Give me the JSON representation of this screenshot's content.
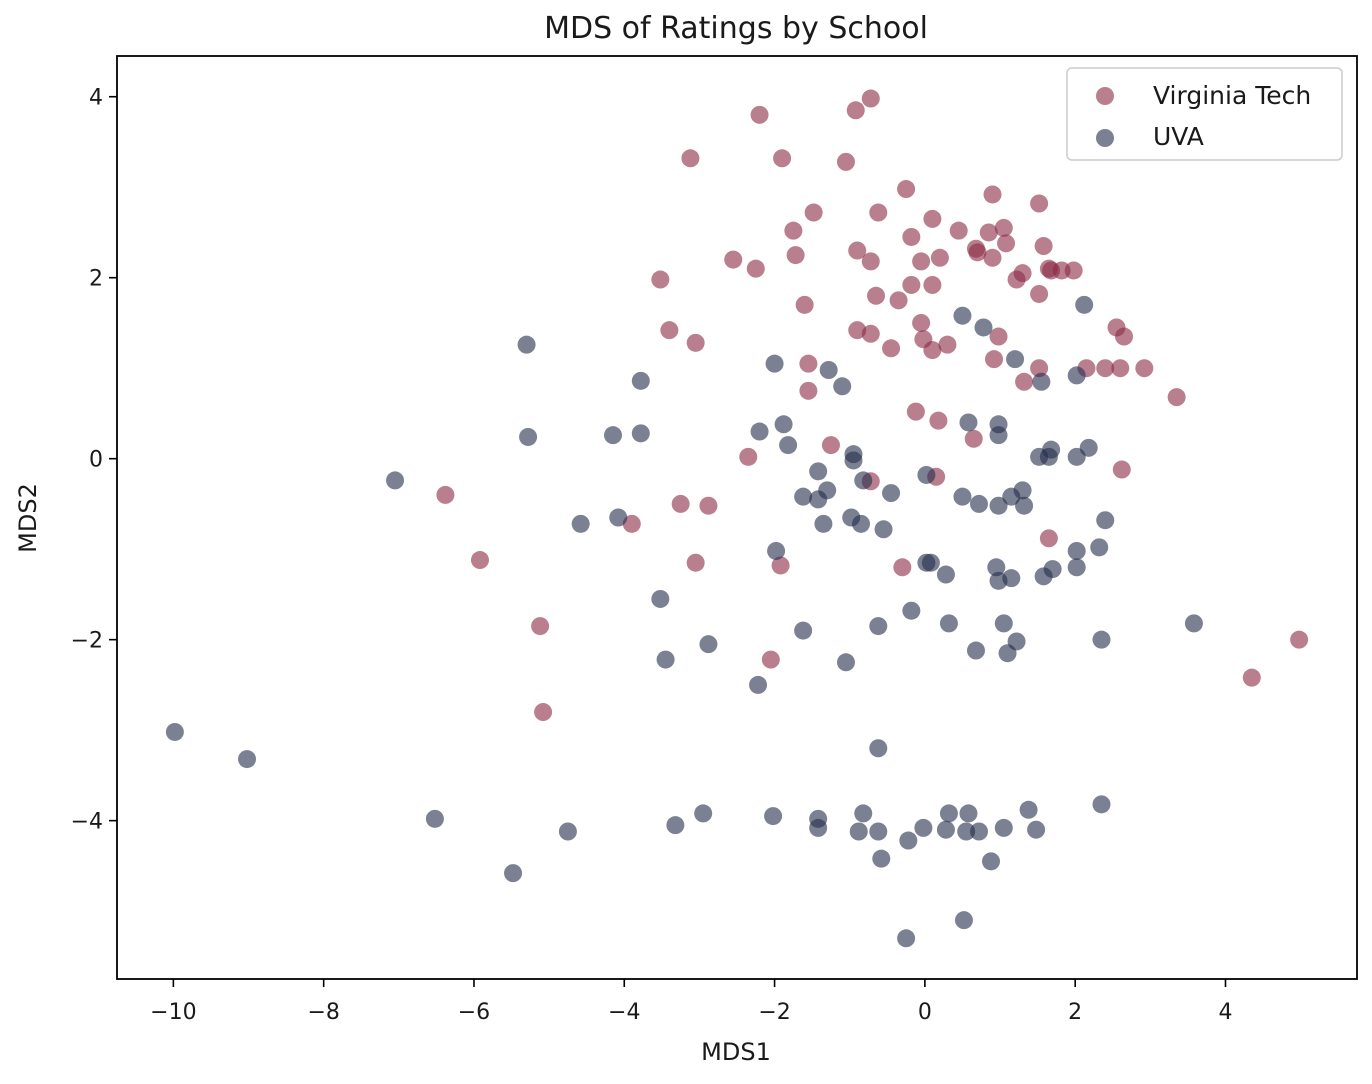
{
  "colors": {
    "virginia_tech": "#8b2942",
    "uva": "#232d4b"
  },
  "chart_data": {
    "type": "scatter",
    "title": "MDS of Ratings by School",
    "xlabel": "MDS1",
    "ylabel": "MDS2",
    "xlim": [
      -10.75,
      5.75
    ],
    "ylim": [
      -5.75,
      4.45
    ],
    "xticks": [
      -10,
      -8,
      -6,
      -4,
      -2,
      0,
      2,
      4
    ],
    "yticks": [
      -4,
      -2,
      0,
      2,
      4
    ],
    "legend_position": "top-right",
    "series": [
      {
        "name": "Virginia Tech",
        "color": "#8b2942",
        "points": [
          [
            -0.72,
            3.98
          ],
          [
            -0.92,
            3.85
          ],
          [
            -2.2,
            3.8
          ],
          [
            -3.12,
            3.32
          ],
          [
            -1.9,
            3.32
          ],
          [
            -1.05,
            3.28
          ],
          [
            -0.25,
            2.98
          ],
          [
            0.9,
            2.92
          ],
          [
            1.52,
            2.82
          ],
          [
            -1.48,
            2.72
          ],
          [
            -0.62,
            2.72
          ],
          [
            0.1,
            2.65
          ],
          [
            -1.75,
            2.52
          ],
          [
            0.45,
            2.52
          ],
          [
            0.85,
            2.5
          ],
          [
            1.05,
            2.55
          ],
          [
            -0.18,
            2.45
          ],
          [
            1.08,
            2.38
          ],
          [
            1.58,
            2.35
          ],
          [
            -0.9,
            2.3
          ],
          [
            0.68,
            2.32
          ],
          [
            0.7,
            2.28
          ],
          [
            -1.72,
            2.25
          ],
          [
            0.9,
            2.22
          ],
          [
            0.2,
            2.22
          ],
          [
            -0.72,
            2.18
          ],
          [
            -0.05,
            2.18
          ],
          [
            -2.55,
            2.2
          ],
          [
            -2.25,
            2.1
          ],
          [
            1.65,
            2.1
          ],
          [
            1.68,
            2.08
          ],
          [
            1.82,
            2.08
          ],
          [
            1.98,
            2.08
          ],
          [
            1.3,
            2.05
          ],
          [
            1.22,
            1.98
          ],
          [
            -3.52,
            1.98
          ],
          [
            -0.18,
            1.92
          ],
          [
            0.1,
            1.92
          ],
          [
            1.52,
            1.82
          ],
          [
            -0.65,
            1.8
          ],
          [
            -0.35,
            1.75
          ],
          [
            -1.6,
            1.7
          ],
          [
            -0.05,
            1.5
          ],
          [
            2.55,
            1.45
          ],
          [
            -3.4,
            1.42
          ],
          [
            -0.9,
            1.42
          ],
          [
            -0.72,
            1.38
          ],
          [
            0.98,
            1.35
          ],
          [
            2.65,
            1.35
          ],
          [
            -0.02,
            1.32
          ],
          [
            -3.05,
            1.28
          ],
          [
            0.3,
            1.26
          ],
          [
            -0.45,
            1.22
          ],
          [
            0.1,
            1.2
          ],
          [
            0.92,
            1.1
          ],
          [
            -1.55,
            1.05
          ],
          [
            1.52,
            1.0
          ],
          [
            2.15,
            1.0
          ],
          [
            2.4,
            1.0
          ],
          [
            2.6,
            1.0
          ],
          [
            2.92,
            1.0
          ],
          [
            1.32,
            0.85
          ],
          [
            -1.55,
            0.75
          ],
          [
            3.35,
            0.68
          ],
          [
            -0.12,
            0.52
          ],
          [
            0.18,
            0.42
          ],
          [
            0.65,
            0.22
          ],
          [
            -1.25,
            0.15
          ],
          [
            -2.35,
            0.02
          ],
          [
            2.62,
            -0.12
          ],
          [
            0.15,
            -0.2
          ],
          [
            -0.72,
            -0.25
          ],
          [
            -6.38,
            -0.4
          ],
          [
            -3.25,
            -0.5
          ],
          [
            -2.88,
            -0.52
          ],
          [
            -3.9,
            -0.72
          ],
          [
            1.65,
            -0.88
          ],
          [
            -5.92,
            -1.12
          ],
          [
            -3.05,
            -1.15
          ],
          [
            -1.92,
            -1.18
          ],
          [
            -0.3,
            -1.2
          ],
          [
            -5.12,
            -1.85
          ],
          [
            -2.05,
            -2.22
          ],
          [
            4.98,
            -2.0
          ],
          [
            4.35,
            -2.42
          ],
          [
            -5.08,
            -2.8
          ]
        ]
      },
      {
        "name": "UVA",
        "color": "#232d4b",
        "points": [
          [
            2.12,
            1.7
          ],
          [
            0.5,
            1.58
          ],
          [
            0.78,
            1.45
          ],
          [
            -5.3,
            1.26
          ],
          [
            1.2,
            1.1
          ],
          [
            -2.0,
            1.05
          ],
          [
            -1.28,
            0.98
          ],
          [
            2.02,
            0.92
          ],
          [
            -3.78,
            0.86
          ],
          [
            1.55,
            0.85
          ],
          [
            -1.1,
            0.8
          ],
          [
            0.58,
            0.4
          ],
          [
            0.98,
            0.38
          ],
          [
            -1.88,
            0.38
          ],
          [
            -5.28,
            0.24
          ],
          [
            -4.15,
            0.26
          ],
          [
            -3.78,
            0.28
          ],
          [
            0.98,
            0.26
          ],
          [
            -2.2,
            0.3
          ],
          [
            -1.82,
            0.15
          ],
          [
            1.68,
            0.1
          ],
          [
            2.18,
            0.12
          ],
          [
            -0.95,
            0.05
          ],
          [
            -0.95,
            -0.02
          ],
          [
            1.52,
            0.02
          ],
          [
            1.65,
            0.02
          ],
          [
            2.02,
            0.02
          ],
          [
            -1.42,
            -0.14
          ],
          [
            0.02,
            -0.18
          ],
          [
            -7.05,
            -0.24
          ],
          [
            -0.82,
            -0.24
          ],
          [
            -0.45,
            -0.38
          ],
          [
            -1.3,
            -0.35
          ],
          [
            -1.62,
            -0.42
          ],
          [
            -1.42,
            -0.45
          ],
          [
            0.5,
            -0.42
          ],
          [
            0.72,
            -0.5
          ],
          [
            0.98,
            -0.52
          ],
          [
            1.15,
            -0.42
          ],
          [
            1.32,
            -0.52
          ],
          [
            1.3,
            -0.35
          ],
          [
            -4.08,
            -0.65
          ],
          [
            -4.58,
            -0.72
          ],
          [
            -0.98,
            -0.65
          ],
          [
            -0.85,
            -0.72
          ],
          [
            -1.35,
            -0.72
          ],
          [
            -0.55,
            -0.78
          ],
          [
            2.4,
            -0.68
          ],
          [
            2.32,
            -0.98
          ],
          [
            2.02,
            -1.02
          ],
          [
            -1.98,
            -1.02
          ],
          [
            0.02,
            -1.15
          ],
          [
            0.08,
            -1.15
          ],
          [
            0.95,
            -1.2
          ],
          [
            2.02,
            -1.2
          ],
          [
            1.7,
            -1.22
          ],
          [
            0.28,
            -1.28
          ],
          [
            1.58,
            -1.3
          ],
          [
            1.15,
            -1.32
          ],
          [
            0.98,
            -1.35
          ],
          [
            -3.52,
            -1.55
          ],
          [
            -0.18,
            -1.68
          ],
          [
            3.58,
            -1.82
          ],
          [
            0.32,
            -1.82
          ],
          [
            1.05,
            -1.82
          ],
          [
            -0.62,
            -1.85
          ],
          [
            -1.62,
            -1.9
          ],
          [
            2.35,
            -2.0
          ],
          [
            -2.88,
            -2.05
          ],
          [
            1.22,
            -2.02
          ],
          [
            0.68,
            -2.12
          ],
          [
            1.1,
            -2.15
          ],
          [
            -3.45,
            -2.22
          ],
          [
            -1.05,
            -2.25
          ],
          [
            -2.22,
            -2.5
          ],
          [
            -9.98,
            -3.02
          ],
          [
            -9.02,
            -3.32
          ],
          [
            -0.62,
            -3.2
          ],
          [
            2.35,
            -3.82
          ],
          [
            1.38,
            -3.88
          ],
          [
            0.32,
            -3.92
          ],
          [
            0.58,
            -3.92
          ],
          [
            -0.82,
            -3.92
          ],
          [
            -2.95,
            -3.92
          ],
          [
            -6.52,
            -3.98
          ],
          [
            -2.02,
            -3.95
          ],
          [
            -1.42,
            -3.98
          ],
          [
            -3.32,
            -4.05
          ],
          [
            -1.42,
            -4.08
          ],
          [
            -0.02,
            -4.08
          ],
          [
            0.28,
            -4.1
          ],
          [
            1.05,
            -4.08
          ],
          [
            1.48,
            -4.1
          ],
          [
            -0.88,
            -4.12
          ],
          [
            -0.62,
            -4.12
          ],
          [
            0.55,
            -4.12
          ],
          [
            0.72,
            -4.12
          ],
          [
            -4.75,
            -4.12
          ],
          [
            -0.22,
            -4.22
          ],
          [
            -0.58,
            -4.42
          ],
          [
            0.88,
            -4.45
          ],
          [
            -5.48,
            -4.58
          ],
          [
            0.52,
            -5.1
          ],
          [
            -0.25,
            -5.3
          ]
        ]
      }
    ]
  }
}
